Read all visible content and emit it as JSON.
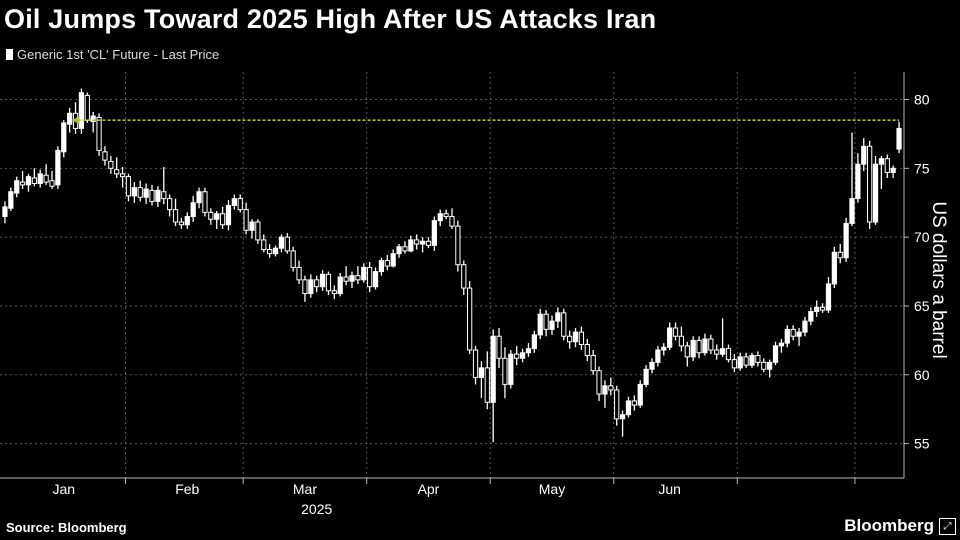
{
  "title": "Oil Jumps Toward 2025 High After US Attacks Iran",
  "source": "Source: Bloomberg",
  "brand": "Bloomberg",
  "chart_data": {
    "type": "candlestick",
    "series_name": "Generic 1st 'CL' Future - Last Price",
    "ylabel": "US dollars a barrel",
    "xlabel": "2025",
    "ylim": [
      52.5,
      82
    ],
    "yticks": [
      55,
      60,
      65,
      70,
      75,
      80
    ],
    "months": [
      "Jan",
      "Feb",
      "Mar",
      "Apr",
      "May",
      "Jun"
    ],
    "reference_line": {
      "value": 78.5,
      "color": "#a8c43c",
      "style": "dashed-arrow"
    },
    "colors": {
      "background": "#000000",
      "candle": "#ffffff",
      "grid": "#5a5a5a"
    },
    "candles": [
      {
        "o": 71.5,
        "h": 72.6,
        "l": 71.0,
        "c": 72.2
      },
      {
        "o": 72.1,
        "h": 73.6,
        "l": 71.9,
        "c": 73.3
      },
      {
        "o": 73.2,
        "h": 74.4,
        "l": 72.9,
        "c": 74.1
      },
      {
        "o": 74.0,
        "h": 74.8,
        "l": 73.5,
        "c": 73.8
      },
      {
        "o": 73.8,
        "h": 74.6,
        "l": 73.3,
        "c": 74.4
      },
      {
        "o": 74.3,
        "h": 75.0,
        "l": 73.7,
        "c": 73.9
      },
      {
        "o": 73.9,
        "h": 74.9,
        "l": 73.6,
        "c": 74.6
      },
      {
        "o": 74.5,
        "h": 75.3,
        "l": 73.8,
        "c": 74.0
      },
      {
        "o": 74.1,
        "h": 74.8,
        "l": 73.5,
        "c": 73.7
      },
      {
        "o": 73.8,
        "h": 76.6,
        "l": 73.5,
        "c": 76.3
      },
      {
        "o": 76.2,
        "h": 78.5,
        "l": 75.8,
        "c": 78.3
      },
      {
        "o": 78.2,
        "h": 79.4,
        "l": 77.6,
        "c": 79.0
      },
      {
        "o": 79.0,
        "h": 79.8,
        "l": 77.5,
        "c": 77.9
      },
      {
        "o": 77.9,
        "h": 80.8,
        "l": 77.5,
        "c": 80.5
      },
      {
        "o": 80.3,
        "h": 80.5,
        "l": 78.3,
        "c": 78.5
      },
      {
        "o": 78.4,
        "h": 79.1,
        "l": 77.6,
        "c": 78.8
      },
      {
        "o": 78.7,
        "h": 79.0,
        "l": 75.9,
        "c": 76.3
      },
      {
        "o": 76.2,
        "h": 76.6,
        "l": 75.2,
        "c": 75.6
      },
      {
        "o": 75.5,
        "h": 75.9,
        "l": 74.6,
        "c": 75.0
      },
      {
        "o": 74.9,
        "h": 75.8,
        "l": 74.3,
        "c": 74.6
      },
      {
        "o": 74.6,
        "h": 75.1,
        "l": 73.6,
        "c": 74.4
      },
      {
        "o": 74.4,
        "h": 74.6,
        "l": 72.6,
        "c": 73.0
      },
      {
        "o": 73.0,
        "h": 74.0,
        "l": 72.5,
        "c": 73.6
      },
      {
        "o": 73.6,
        "h": 74.1,
        "l": 72.6,
        "c": 72.9
      },
      {
        "o": 72.9,
        "h": 73.9,
        "l": 72.4,
        "c": 73.5
      },
      {
        "o": 73.4,
        "h": 73.8,
        "l": 72.3,
        "c": 72.6
      },
      {
        "o": 72.6,
        "h": 73.7,
        "l": 72.2,
        "c": 73.4
      },
      {
        "o": 73.3,
        "h": 75.1,
        "l": 72.4,
        "c": 72.8
      },
      {
        "o": 72.8,
        "h": 73.1,
        "l": 71.5,
        "c": 72.0
      },
      {
        "o": 72.0,
        "h": 72.8,
        "l": 70.8,
        "c": 71.1
      },
      {
        "o": 71.1,
        "h": 71.4,
        "l": 70.6,
        "c": 70.9
      },
      {
        "o": 70.9,
        "h": 71.8,
        "l": 70.6,
        "c": 71.5
      },
      {
        "o": 71.5,
        "h": 73.0,
        "l": 71.1,
        "c": 72.5
      },
      {
        "o": 72.5,
        "h": 73.6,
        "l": 72.1,
        "c": 73.3
      },
      {
        "o": 73.3,
        "h": 73.6,
        "l": 71.5,
        "c": 71.8
      },
      {
        "o": 71.8,
        "h": 72.1,
        "l": 70.9,
        "c": 71.3
      },
      {
        "o": 71.3,
        "h": 71.9,
        "l": 70.6,
        "c": 71.7
      },
      {
        "o": 71.7,
        "h": 72.2,
        "l": 70.6,
        "c": 70.9
      },
      {
        "o": 70.9,
        "h": 72.7,
        "l": 70.5,
        "c": 72.3
      },
      {
        "o": 72.3,
        "h": 73.1,
        "l": 72.0,
        "c": 72.8
      },
      {
        "o": 72.8,
        "h": 73.1,
        "l": 71.8,
        "c": 72.0
      },
      {
        "o": 72.0,
        "h": 72.5,
        "l": 70.2,
        "c": 70.5
      },
      {
        "o": 70.5,
        "h": 71.3,
        "l": 69.9,
        "c": 71.1
      },
      {
        "o": 71.1,
        "h": 71.3,
        "l": 69.5,
        "c": 69.8
      },
      {
        "o": 69.8,
        "h": 70.2,
        "l": 68.9,
        "c": 69.1
      },
      {
        "o": 69.1,
        "h": 69.5,
        "l": 68.5,
        "c": 68.8
      },
      {
        "o": 68.8,
        "h": 69.4,
        "l": 68.6,
        "c": 69.2
      },
      {
        "o": 69.2,
        "h": 70.2,
        "l": 68.9,
        "c": 70.0
      },
      {
        "o": 70.0,
        "h": 70.3,
        "l": 68.8,
        "c": 69.0
      },
      {
        "o": 69.0,
        "h": 69.3,
        "l": 67.5,
        "c": 67.8
      },
      {
        "o": 67.8,
        "h": 68.3,
        "l": 66.6,
        "c": 66.9
      },
      {
        "o": 66.9,
        "h": 67.2,
        "l": 65.3,
        "c": 65.9
      },
      {
        "o": 65.9,
        "h": 67.3,
        "l": 65.6,
        "c": 66.9
      },
      {
        "o": 66.9,
        "h": 67.2,
        "l": 66.0,
        "c": 66.4
      },
      {
        "o": 66.4,
        "h": 67.6,
        "l": 66.1,
        "c": 67.3
      },
      {
        "o": 67.3,
        "h": 67.5,
        "l": 65.8,
        "c": 66.1
      },
      {
        "o": 66.1,
        "h": 66.5,
        "l": 65.5,
        "c": 65.9
      },
      {
        "o": 65.9,
        "h": 67.4,
        "l": 65.7,
        "c": 67.1
      },
      {
        "o": 67.1,
        "h": 67.9,
        "l": 66.5,
        "c": 66.8
      },
      {
        "o": 66.8,
        "h": 67.5,
        "l": 66.3,
        "c": 67.2
      },
      {
        "o": 67.2,
        "h": 67.9,
        "l": 66.6,
        "c": 66.9
      },
      {
        "o": 66.9,
        "h": 68.1,
        "l": 66.7,
        "c": 67.8
      },
      {
        "o": 67.8,
        "h": 68.2,
        "l": 66.0,
        "c": 66.4
      },
      {
        "o": 66.4,
        "h": 67.8,
        "l": 66.2,
        "c": 67.5
      },
      {
        "o": 67.5,
        "h": 68.5,
        "l": 67.2,
        "c": 68.3
      },
      {
        "o": 68.3,
        "h": 68.7,
        "l": 67.6,
        "c": 67.9
      },
      {
        "o": 67.9,
        "h": 69.1,
        "l": 67.8,
        "c": 68.8
      },
      {
        "o": 68.8,
        "h": 69.5,
        "l": 68.5,
        "c": 69.3
      },
      {
        "o": 69.3,
        "h": 69.7,
        "l": 68.8,
        "c": 69.0
      },
      {
        "o": 69.0,
        "h": 70.1,
        "l": 68.9,
        "c": 69.8
      },
      {
        "o": 69.8,
        "h": 70.2,
        "l": 69.1,
        "c": 69.5
      },
      {
        "o": 69.5,
        "h": 70.0,
        "l": 68.9,
        "c": 69.7
      },
      {
        "o": 69.7,
        "h": 70.0,
        "l": 69.2,
        "c": 69.4
      },
      {
        "o": 69.4,
        "h": 71.5,
        "l": 69.0,
        "c": 71.2
      },
      {
        "o": 71.2,
        "h": 72.0,
        "l": 70.8,
        "c": 71.7
      },
      {
        "o": 71.7,
        "h": 72.0,
        "l": 71.3,
        "c": 71.5
      },
      {
        "o": 71.5,
        "h": 72.1,
        "l": 70.6,
        "c": 70.8
      },
      {
        "o": 70.8,
        "h": 71.2,
        "l": 67.5,
        "c": 68.0
      },
      {
        "o": 68.0,
        "h": 68.3,
        "l": 65.8,
        "c": 66.3
      },
      {
        "o": 66.3,
        "h": 66.8,
        "l": 61.5,
        "c": 61.8
      },
      {
        "o": 61.8,
        "h": 62.1,
        "l": 59.3,
        "c": 59.8
      },
      {
        "o": 59.8,
        "h": 61.0,
        "l": 58.3,
        "c": 60.5
      },
      {
        "o": 60.5,
        "h": 61.7,
        "l": 57.5,
        "c": 58.0
      },
      {
        "o": 58.0,
        "h": 63.3,
        "l": 55.1,
        "c": 62.8
      },
      {
        "o": 62.8,
        "h": 63.4,
        "l": 60.5,
        "c": 61.2
      },
      {
        "o": 61.2,
        "h": 62.0,
        "l": 58.3,
        "c": 59.3
      },
      {
        "o": 59.3,
        "h": 61.8,
        "l": 59.0,
        "c": 61.5
      },
      {
        "o": 61.5,
        "h": 62.1,
        "l": 60.7,
        "c": 61.2
      },
      {
        "o": 61.2,
        "h": 61.9,
        "l": 60.9,
        "c": 61.6
      },
      {
        "o": 61.6,
        "h": 62.3,
        "l": 61.3,
        "c": 61.9
      },
      {
        "o": 61.9,
        "h": 63.2,
        "l": 61.6,
        "c": 62.9
      },
      {
        "o": 62.9,
        "h": 64.8,
        "l": 62.6,
        "c": 64.4
      },
      {
        "o": 64.4,
        "h": 64.7,
        "l": 62.8,
        "c": 63.3
      },
      {
        "o": 63.3,
        "h": 64.3,
        "l": 62.9,
        "c": 63.9
      },
      {
        "o": 63.9,
        "h": 64.9,
        "l": 63.4,
        "c": 64.5
      },
      {
        "o": 64.5,
        "h": 64.8,
        "l": 62.5,
        "c": 62.8
      },
      {
        "o": 62.8,
        "h": 63.2,
        "l": 61.9,
        "c": 62.4
      },
      {
        "o": 62.4,
        "h": 63.4,
        "l": 62.0,
        "c": 63.1
      },
      {
        "o": 63.1,
        "h": 63.5,
        "l": 61.8,
        "c": 62.2
      },
      {
        "o": 62.2,
        "h": 62.6,
        "l": 61.0,
        "c": 61.4
      },
      {
        "o": 61.4,
        "h": 61.8,
        "l": 60.0,
        "c": 60.3
      },
      {
        "o": 60.3,
        "h": 60.6,
        "l": 58.1,
        "c": 58.6
      },
      {
        "o": 58.6,
        "h": 59.6,
        "l": 57.6,
        "c": 59.2
      },
      {
        "o": 59.2,
        "h": 59.8,
        "l": 58.5,
        "c": 58.9
      },
      {
        "o": 58.9,
        "h": 59.2,
        "l": 56.3,
        "c": 56.8
      },
      {
        "o": 56.8,
        "h": 57.4,
        "l": 55.5,
        "c": 57.1
      },
      {
        "o": 57.1,
        "h": 58.4,
        "l": 56.9,
        "c": 58.1
      },
      {
        "o": 58.1,
        "h": 58.5,
        "l": 57.4,
        "c": 57.8
      },
      {
        "o": 57.8,
        "h": 59.6,
        "l": 57.6,
        "c": 59.3
      },
      {
        "o": 59.3,
        "h": 60.7,
        "l": 59.1,
        "c": 60.4
      },
      {
        "o": 60.4,
        "h": 61.2,
        "l": 60.1,
        "c": 60.9
      },
      {
        "o": 60.9,
        "h": 62.1,
        "l": 60.6,
        "c": 61.8
      },
      {
        "o": 61.8,
        "h": 62.3,
        "l": 61.4,
        "c": 62.0
      },
      {
        "o": 62.0,
        "h": 63.8,
        "l": 61.8,
        "c": 63.4
      },
      {
        "o": 63.4,
        "h": 63.8,
        "l": 62.5,
        "c": 62.8
      },
      {
        "o": 62.8,
        "h": 63.5,
        "l": 61.7,
        "c": 62.1
      },
      {
        "o": 62.1,
        "h": 62.4,
        "l": 60.6,
        "c": 61.3
      },
      {
        "o": 61.3,
        "h": 62.8,
        "l": 61.0,
        "c": 62.5
      },
      {
        "o": 62.5,
        "h": 62.8,
        "l": 61.2,
        "c": 61.6
      },
      {
        "o": 61.6,
        "h": 63.0,
        "l": 61.4,
        "c": 62.6
      },
      {
        "o": 62.6,
        "h": 62.9,
        "l": 61.5,
        "c": 61.8
      },
      {
        "o": 61.8,
        "h": 62.2,
        "l": 61.1,
        "c": 61.5
      },
      {
        "o": 61.5,
        "h": 64.1,
        "l": 61.3,
        "c": 61.9
      },
      {
        "o": 61.9,
        "h": 62.2,
        "l": 60.9,
        "c": 61.1
      },
      {
        "o": 61.1,
        "h": 61.5,
        "l": 60.2,
        "c": 60.5
      },
      {
        "o": 60.5,
        "h": 61.6,
        "l": 60.3,
        "c": 61.3
      },
      {
        "o": 61.3,
        "h": 61.6,
        "l": 60.5,
        "c": 60.7
      },
      {
        "o": 60.7,
        "h": 61.6,
        "l": 60.5,
        "c": 61.4
      },
      {
        "o": 61.4,
        "h": 61.7,
        "l": 60.6,
        "c": 60.9
      },
      {
        "o": 60.9,
        "h": 61.2,
        "l": 60.2,
        "c": 60.4
      },
      {
        "o": 60.4,
        "h": 61.1,
        "l": 59.8,
        "c": 60.9
      },
      {
        "o": 60.9,
        "h": 62.4,
        "l": 60.7,
        "c": 62.1
      },
      {
        "o": 62.1,
        "h": 62.6,
        "l": 61.6,
        "c": 62.3
      },
      {
        "o": 62.3,
        "h": 63.6,
        "l": 62.0,
        "c": 63.3
      },
      {
        "o": 63.3,
        "h": 63.6,
        "l": 62.5,
        "c": 62.8
      },
      {
        "o": 62.8,
        "h": 63.4,
        "l": 62.1,
        "c": 63.1
      },
      {
        "o": 63.1,
        "h": 64.2,
        "l": 62.8,
        "c": 63.9
      },
      {
        "o": 63.9,
        "h": 64.9,
        "l": 63.6,
        "c": 64.6
      },
      {
        "o": 64.6,
        "h": 65.4,
        "l": 64.2,
        "c": 64.9
      },
      {
        "o": 64.9,
        "h": 65.2,
        "l": 64.5,
        "c": 64.7
      },
      {
        "o": 64.7,
        "h": 67.1,
        "l": 64.5,
        "c": 66.6
      },
      {
        "o": 66.6,
        "h": 69.3,
        "l": 66.3,
        "c": 68.9
      },
      {
        "o": 68.9,
        "h": 69.5,
        "l": 68.1,
        "c": 68.5
      },
      {
        "o": 68.5,
        "h": 71.4,
        "l": 68.2,
        "c": 71.0
      },
      {
        "o": 71.0,
        "h": 77.6,
        "l": 70.8,
        "c": 72.8
      },
      {
        "o": 72.8,
        "h": 76.1,
        "l": 72.5,
        "c": 75.3
      },
      {
        "o": 75.3,
        "h": 77.2,
        "l": 74.8,
        "c": 76.6
      },
      {
        "o": 76.6,
        "h": 77.0,
        "l": 70.6,
        "c": 71.1
      },
      {
        "o": 71.1,
        "h": 75.9,
        "l": 70.9,
        "c": 75.3
      },
      {
        "o": 75.3,
        "h": 75.9,
        "l": 73.5,
        "c": 75.7
      },
      {
        "o": 75.7,
        "h": 76.0,
        "l": 74.3,
        "c": 74.7
      },
      {
        "o": 74.7,
        "h": 75.2,
        "l": 74.3,
        "c": 75.0
      },
      {
        "o": 76.4,
        "h": 78.4,
        "l": 76.1,
        "c": 77.9
      }
    ]
  }
}
